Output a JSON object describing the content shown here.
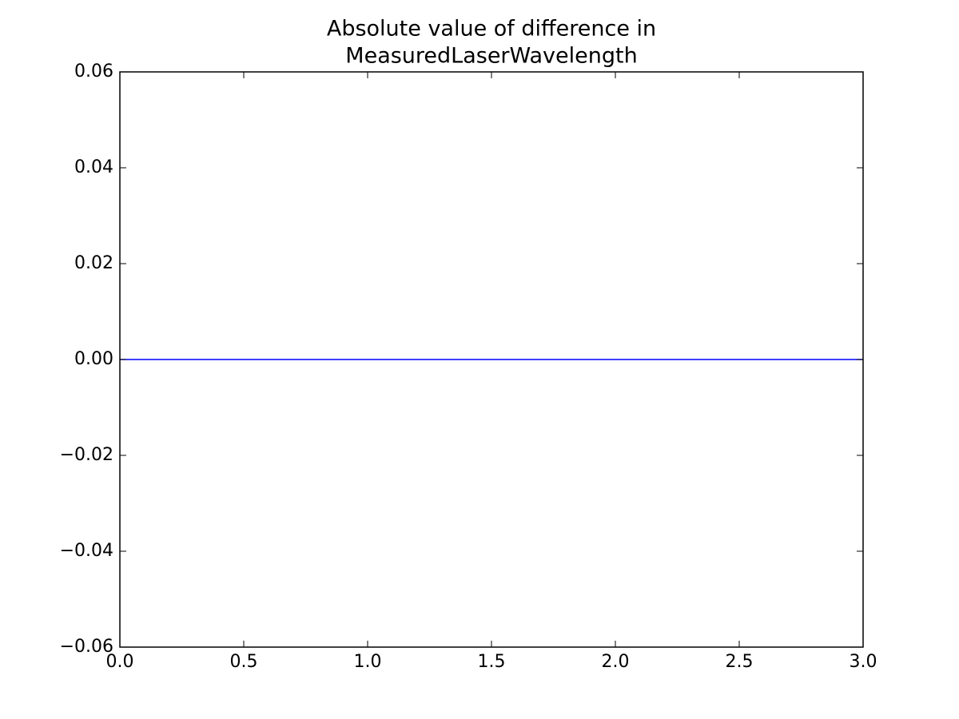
{
  "chart_data": {
    "type": "line",
    "title": [
      "Absolute value of difference in",
      "MeasuredLaserWavelength"
    ],
    "x": [
      0,
      1,
      2,
      3
    ],
    "values": [
      0,
      0,
      0,
      0
    ],
    "color": "#0000ff",
    "xlim": [
      0,
      3
    ],
    "ylim": [
      -0.06,
      0.06
    ],
    "xticks": [
      {
        "value": 0,
        "label": "0.0"
      },
      0.5,
      {
        "value": 1,
        "label": "1.0"
      },
      1.5,
      {
        "value": 2,
        "label": "2.0"
      },
      2.5,
      {
        "value": 3,
        "label": "3.0"
      }
    ],
    "yticks": [
      {
        "value": -0.06,
        "label": "−0.06"
      },
      {
        "value": -0.04,
        "label": "−0.04"
      },
      {
        "value": -0.02,
        "label": "−0.02"
      },
      {
        "value": 0,
        "label": "0.00"
      },
      0.02,
      0.04,
      0.06
    ],
    "grid": false
  }
}
